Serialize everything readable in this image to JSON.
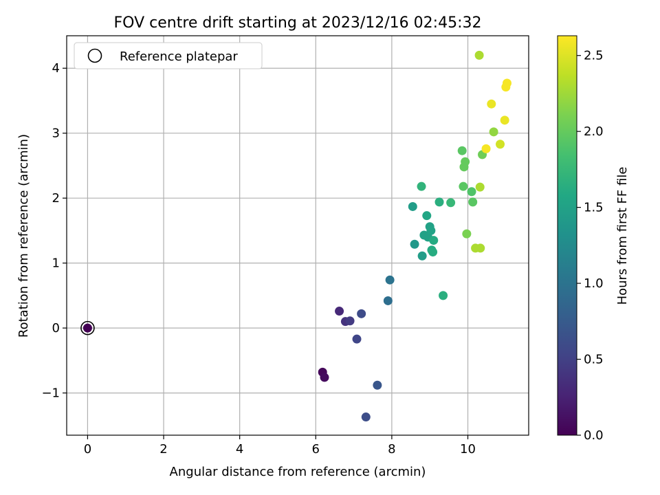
{
  "chart_data": {
    "type": "scatter",
    "title": "FOV centre drift starting at 2023/12/16 02:45:32",
    "xlabel": "Angular distance from reference (arcmin)",
    "ylabel": "Rotation from reference (arcmin)",
    "xlim": [
      -0.55,
      11.6
    ],
    "ylim": [
      -1.65,
      4.5
    ],
    "xticks": [
      0,
      2,
      4,
      6,
      8,
      10
    ],
    "xtick_labels": [
      "0",
      "2",
      "4",
      "6",
      "8",
      "10"
    ],
    "yticks": [
      -1,
      0,
      1,
      2,
      3,
      4
    ],
    "ytick_labels": [
      "−1",
      "0",
      "1",
      "2",
      "3",
      "4"
    ],
    "grid": true,
    "legend": {
      "position": "top-left",
      "entries": [
        "Reference platepar"
      ]
    },
    "reference": {
      "x": 0,
      "y": 0
    },
    "colorbar": {
      "label": "Hours from first FF file",
      "colormap": "viridis",
      "range": [
        0,
        2.63
      ],
      "ticks": [
        0.0,
        0.5,
        1.0,
        1.5,
        2.0,
        2.5
      ],
      "tick_labels": [
        "0.0",
        "0.5",
        "1.0",
        "1.5",
        "2.0",
        "2.5"
      ]
    },
    "points": [
      {
        "x": 0.0,
        "y": 0.0,
        "h": 0.0
      },
      {
        "x": 6.18,
        "y": -0.68,
        "h": 0.05
      },
      {
        "x": 6.23,
        "y": -0.76,
        "h": 0.08
      },
      {
        "x": 6.62,
        "y": 0.26,
        "h": 0.3
      },
      {
        "x": 6.78,
        "y": 0.1,
        "h": 0.38
      },
      {
        "x": 6.9,
        "y": 0.11,
        "h": 0.45
      },
      {
        "x": 7.08,
        "y": -0.17,
        "h": 0.55
      },
      {
        "x": 7.2,
        "y": 0.22,
        "h": 0.6
      },
      {
        "x": 7.32,
        "y": -1.37,
        "h": 0.62
      },
      {
        "x": 7.62,
        "y": -0.88,
        "h": 0.7
      },
      {
        "x": 7.9,
        "y": 0.42,
        "h": 0.95
      },
      {
        "x": 7.95,
        "y": 0.74,
        "h": 1.0
      },
      {
        "x": 8.55,
        "y": 1.87,
        "h": 1.45
      },
      {
        "x": 8.6,
        "y": 1.29,
        "h": 1.4
      },
      {
        "x": 8.78,
        "y": 2.18,
        "h": 1.7
      },
      {
        "x": 8.8,
        "y": 1.11,
        "h": 1.45
      },
      {
        "x": 8.85,
        "y": 1.43,
        "h": 1.5
      },
      {
        "x": 8.92,
        "y": 1.73,
        "h": 1.55
      },
      {
        "x": 8.95,
        "y": 1.4,
        "h": 1.5
      },
      {
        "x": 9.0,
        "y": 1.56,
        "h": 1.5
      },
      {
        "x": 9.03,
        "y": 1.5,
        "h": 1.52
      },
      {
        "x": 9.05,
        "y": 1.2,
        "h": 1.6
      },
      {
        "x": 9.08,
        "y": 1.17,
        "h": 1.62
      },
      {
        "x": 9.1,
        "y": 1.35,
        "h": 1.6
      },
      {
        "x": 9.25,
        "y": 1.94,
        "h": 1.65
      },
      {
        "x": 9.35,
        "y": 0.5,
        "h": 1.65
      },
      {
        "x": 9.55,
        "y": 1.93,
        "h": 1.75
      },
      {
        "x": 9.85,
        "y": 2.73,
        "h": 1.95
      },
      {
        "x": 9.88,
        "y": 2.18,
        "h": 1.95
      },
      {
        "x": 9.9,
        "y": 2.48,
        "h": 2.0
      },
      {
        "x": 9.93,
        "y": 2.56,
        "h": 2.0
      },
      {
        "x": 9.97,
        "y": 1.45,
        "h": 2.1
      },
      {
        "x": 10.1,
        "y": 2.1,
        "h": 1.9
      },
      {
        "x": 10.13,
        "y": 1.94,
        "h": 1.95
      },
      {
        "x": 10.2,
        "y": 1.23,
        "h": 2.3
      },
      {
        "x": 10.3,
        "y": 4.2,
        "h": 2.3
      },
      {
        "x": 10.32,
        "y": 2.17,
        "h": 2.3
      },
      {
        "x": 10.33,
        "y": 1.23,
        "h": 2.3
      },
      {
        "x": 10.38,
        "y": 2.67,
        "h": 2.05
      },
      {
        "x": 10.48,
        "y": 2.76,
        "h": 2.6
      },
      {
        "x": 10.62,
        "y": 3.45,
        "h": 2.55
      },
      {
        "x": 10.68,
        "y": 3.02,
        "h": 2.2
      },
      {
        "x": 10.85,
        "y": 2.83,
        "h": 2.45
      },
      {
        "x": 10.97,
        "y": 3.2,
        "h": 2.55
      },
      {
        "x": 11.0,
        "y": 3.71,
        "h": 2.6
      },
      {
        "x": 11.03,
        "y": 3.77,
        "h": 2.6
      }
    ]
  }
}
